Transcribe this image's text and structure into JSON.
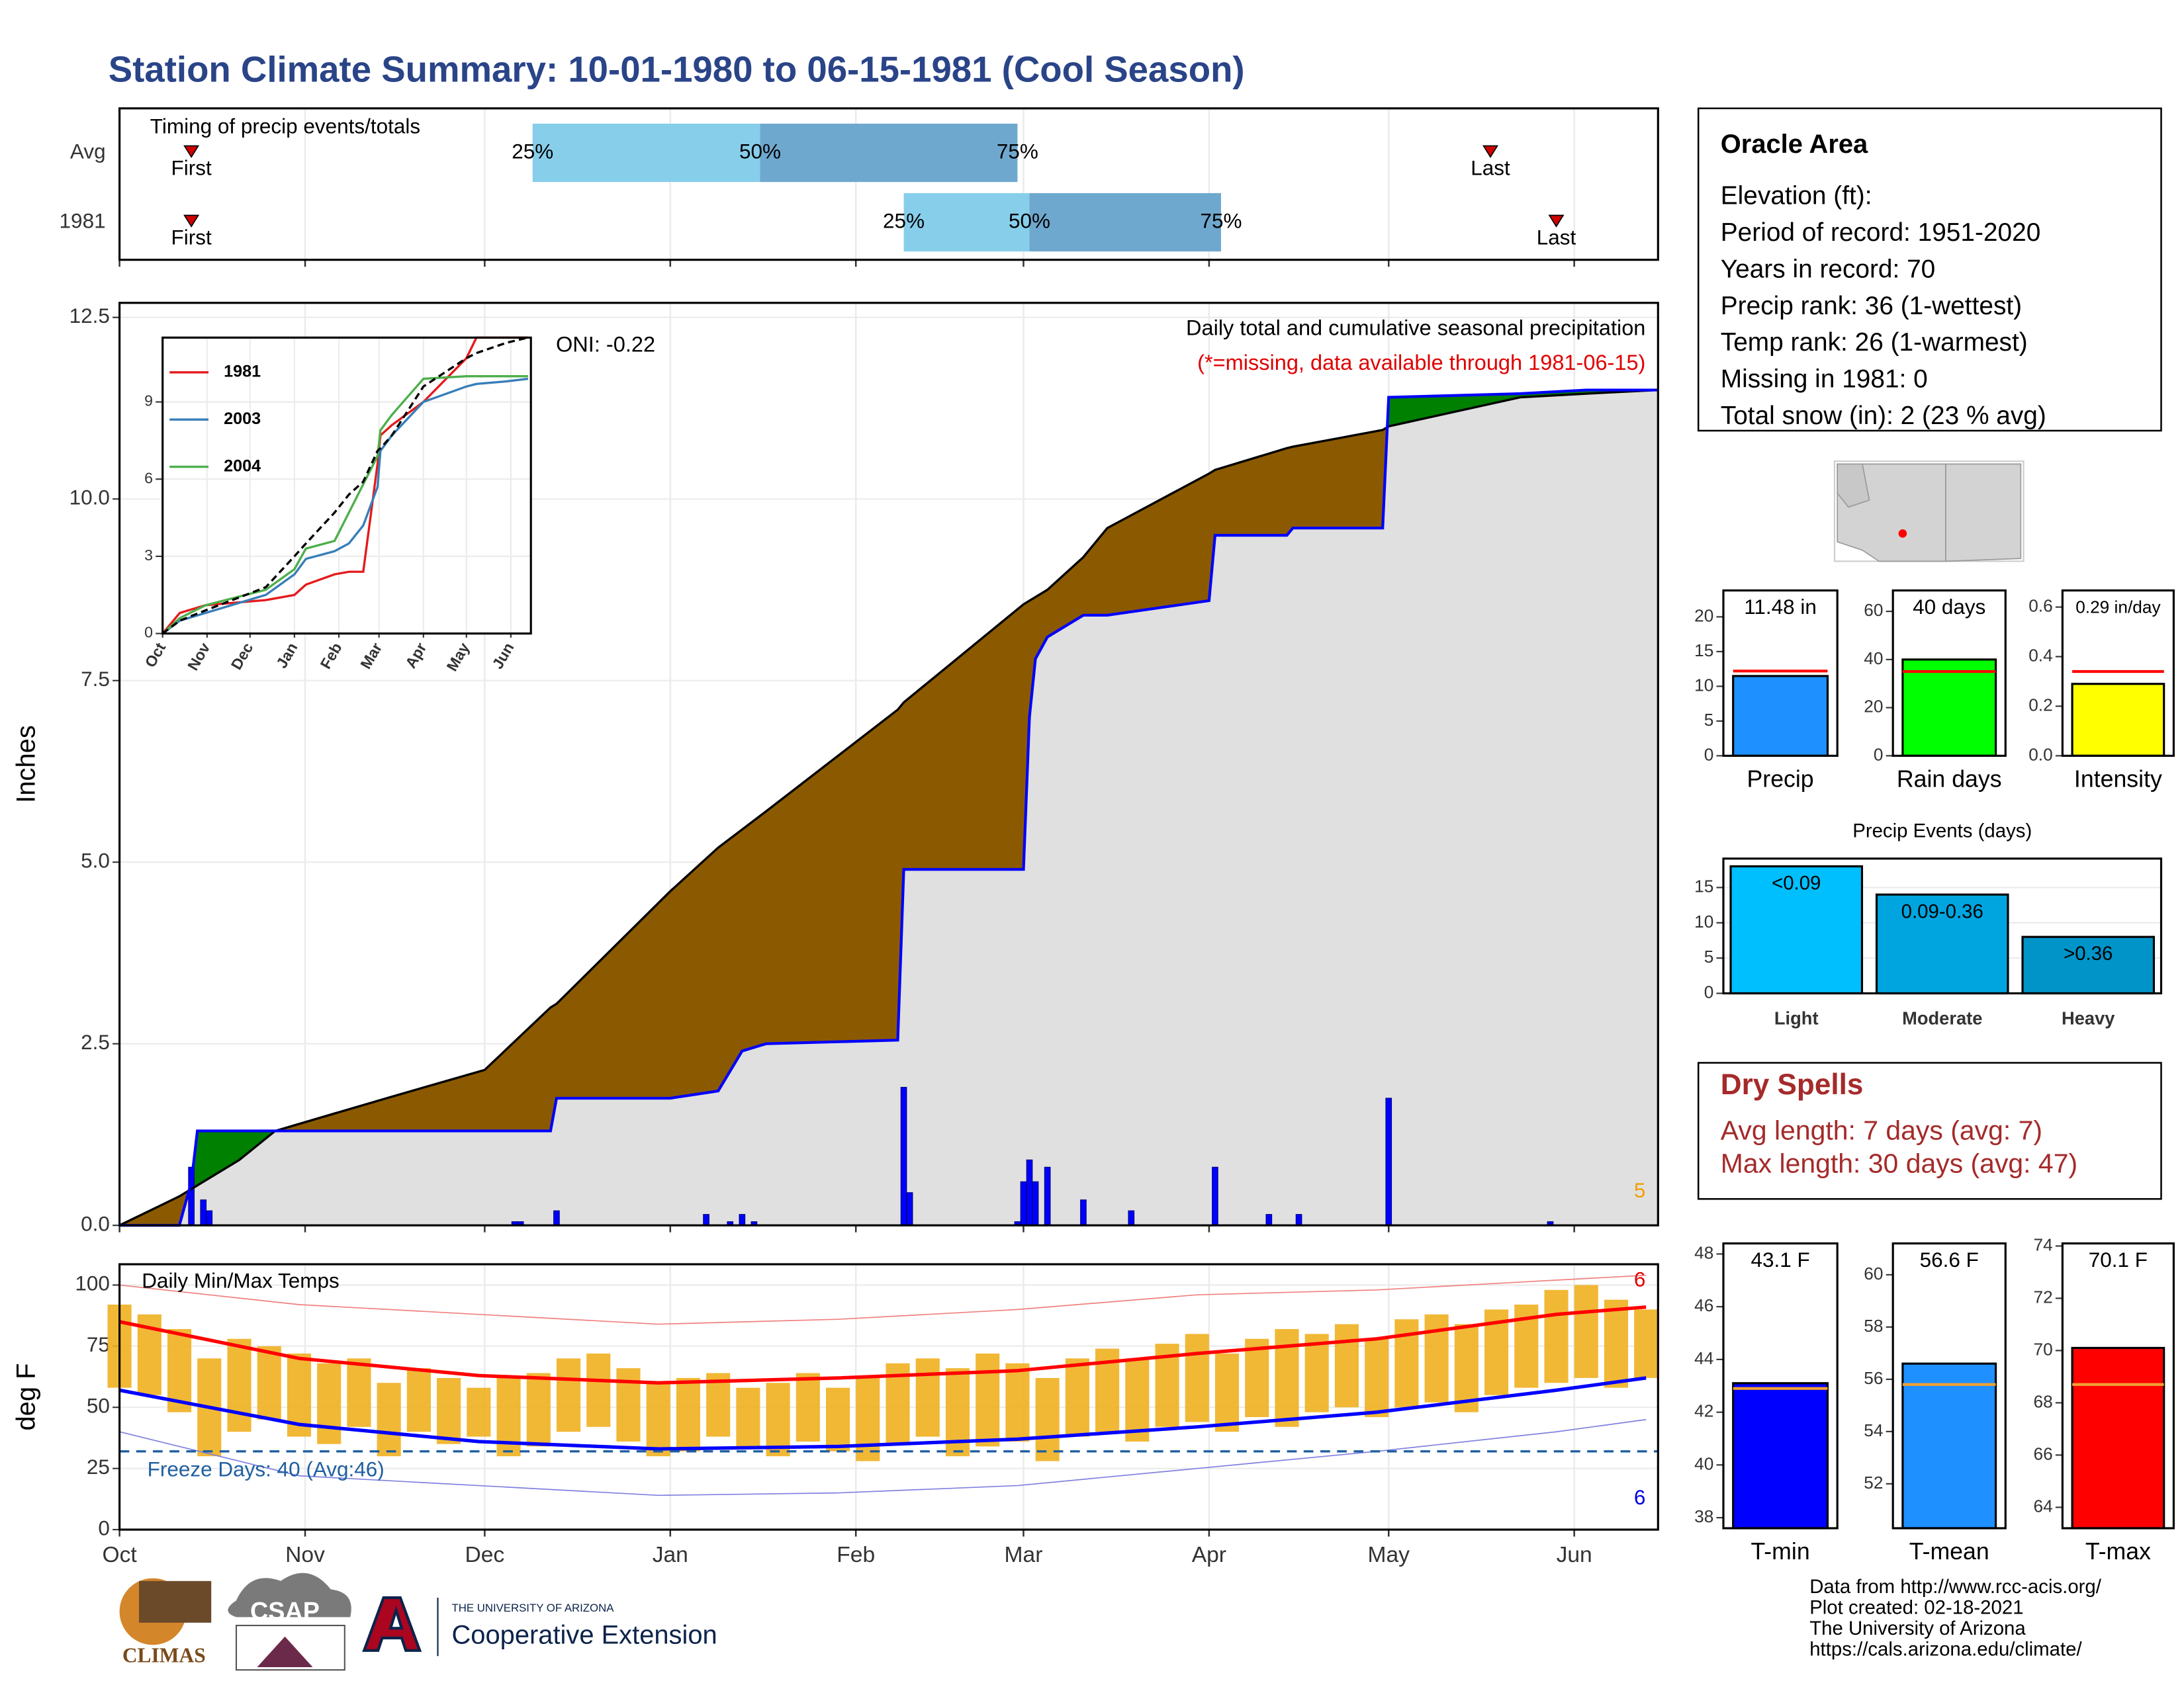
{
  "title": "Station Climate Summary: 10-01-1980 to 06-15-1981 (Cool Season)",
  "station": {
    "name": "Oracle Area",
    "lines": [
      "Elevation (ft):",
      "Period of record: 1951-2020",
      "Years in record: 70",
      "Precip rank: 36 (1-wettest)",
      "Temp rank: 26 (1-warmest)",
      "Missing in 1981: 0",
      "Total snow (in): 2 (23 % avg)"
    ]
  },
  "dry_spells": {
    "title": "Dry Spells",
    "lines": [
      "Avg length: 7 days (avg: 7)",
      "Max length: 30 days (avg: 47)"
    ]
  },
  "credits": [
    "Data from http://www.rcc-acis.org/",
    "Plot created: 02-18-2021",
    "The University of Arizona",
    "https://cals.arizona.edu/climate/"
  ],
  "logos": [
    "CLIMAS",
    "CSAP",
    "THE UNIVERSITY OF ARIZONA",
    "Cooperative Extension"
  ],
  "chart_data": [
    {
      "type": "timing",
      "title": "Timing of precip events/totals",
      "xlim": [
        0,
        257
      ],
      "xticks": [
        0,
        31,
        61,
        92,
        123,
        151,
        182,
        212,
        243
      ],
      "colors": [
        "#87ceeb",
        "#6fa8cf"
      ],
      "marker_color": "#d00000",
      "quartile_labels": [
        "25%",
        "50%",
        "75%"
      ],
      "first_label": "First",
      "last_label": "Last",
      "categories": [
        "Avg",
        "1981"
      ],
      "first": [
        12,
        12
      ],
      "quartiles": [
        [
          69,
          107,
          150
        ],
        [
          131,
          152,
          184
        ]
      ],
      "last": [
        229,
        240
      ]
    },
    {
      "type": "area",
      "title": "Daily total and cumulative seasonal precipitation",
      "subtitle": "(*=missing, data available through 1981-06-15)",
      "oni_label": "ONI: -0.22",
      "corner_count": 5,
      "ylabel": "Inches",
      "xlim": [
        0,
        257
      ],
      "xticks": [
        0,
        31,
        61,
        92,
        123,
        151,
        182,
        212,
        243
      ],
      "ylim": [
        0,
        12.7
      ],
      "yticks": [
        {
          "value": 0,
          "label": "0.0"
        },
        2.5,
        {
          "value": 5,
          "label": "5.0"
        },
        7.5,
        {
          "value": 10,
          "label": "10.0"
        },
        12.5
      ],
      "grid": true,
      "fill_colors": {
        "below": "#8b5a00",
        "above": "#008000",
        "base": "#e0e0e0"
      },
      "x": [
        0,
        5,
        10,
        12,
        13,
        20,
        26,
        45,
        61,
        72,
        73,
        92,
        100,
        104,
        108,
        130,
        131,
        151,
        152,
        153,
        155,
        161,
        165,
        182,
        183,
        195,
        196,
        211,
        212,
        234,
        245,
        257
      ],
      "series": [
        {
          "color": "#000000",
          "values": [
            0,
            0.2,
            0.4,
            0.5,
            0.55,
            0.9,
            1.3,
            1.76,
            2.14,
            3.0,
            3.05,
            4.6,
            5.2,
            5.45,
            5.7,
            7.1,
            7.2,
            8.55,
            8.6,
            8.65,
            8.75,
            9.2,
            9.6,
            10.35,
            10.4,
            10.7,
            10.72,
            10.95,
            11.0,
            11.4,
            11.45,
            11.5
          ]
        },
        {
          "color": "#0000ff",
          "values": [
            0,
            0,
            0,
            0.6,
            1.3,
            1.3,
            1.3,
            1.3,
            1.3,
            1.3,
            1.75,
            1.75,
            1.85,
            2.4,
            2.5,
            2.55,
            4.9,
            4.9,
            7.0,
            7.8,
            8.1,
            8.4,
            8.4,
            8.6,
            9.5,
            9.5,
            9.6,
            9.6,
            11.4,
            11.45,
            11.5,
            11.5
          ]
        }
      ],
      "daily": {
        "color": "#0000ff",
        "x": [
          12,
          14,
          15,
          66,
          67,
          73,
          98,
          102,
          104,
          106,
          131,
          132,
          150,
          151,
          152,
          153,
          155,
          161,
          169,
          183,
          192,
          197,
          212,
          239
        ],
        "values": [
          0.8,
          0.35,
          0.2,
          0.05,
          0.05,
          0.2,
          0.15,
          0.05,
          0.15,
          0.05,
          1.9,
          0.45,
          0.05,
          0.6,
          0.9,
          0.6,
          0.8,
          0.35,
          0.2,
          0.8,
          0.15,
          0.15,
          1.75,
          0.05
        ]
      }
    },
    {
      "type": "line",
      "xlim": [
        0,
        257
      ],
      "ylim": [
        0,
        11.5
      ],
      "xticks": [
        {
          "value": 0,
          "label": "Oct"
        },
        {
          "value": 31,
          "label": "Nov"
        },
        {
          "value": 61,
          "label": "Dec"
        },
        {
          "value": 92,
          "label": "Jan"
        },
        {
          "value": 123,
          "label": "Feb"
        },
        {
          "value": 151,
          "label": "Mar"
        },
        {
          "value": 182,
          "label": "Apr"
        },
        {
          "value": 212,
          "label": "May"
        },
        {
          "value": 243,
          "label": "Jun"
        }
      ],
      "yticks": [
        0,
        3,
        6,
        9
      ],
      "grid": true,
      "x": [
        0,
        12,
        30,
        72,
        92,
        100,
        120,
        130,
        140,
        150,
        152,
        160,
        182,
        212,
        219,
        240,
        255
      ],
      "series": [
        {
          "name": "1981",
          "color": "#e41a1c",
          "values": [
            0,
            0.8,
            1.1,
            1.3,
            1.5,
            1.9,
            2.3,
            2.4,
            2.4,
            6.6,
            7.7,
            8.1,
            9.0,
            10.7,
            11.5,
            11.5,
            11.5
          ]
        },
        {
          "name": "2003",
          "color": "#377eb8",
          "values": [
            0,
            0.5,
            0.8,
            1.5,
            2.3,
            2.9,
            3.2,
            3.5,
            4.2,
            5.7,
            7.1,
            7.7,
            9.0,
            9.6,
            9.7,
            9.8,
            9.9
          ]
        },
        {
          "name": "2004",
          "color": "#4daf4a",
          "values": [
            0,
            0.6,
            1.1,
            1.7,
            2.5,
            3.3,
            3.6,
            4.7,
            5.8,
            6.9,
            7.9,
            8.5,
            9.9,
            10.0,
            10.0,
            10.0,
            10.0
          ]
        },
        {
          "color": "#000000",
          "dash": true,
          "values": [
            0,
            0.5,
            0.9,
            1.8,
            3.0,
            3.5,
            4.7,
            5.4,
            5.9,
            7.1,
            7.2,
            7.7,
            9.6,
            10.7,
            10.9,
            11.3,
            11.5
          ]
        }
      ]
    },
    {
      "type": "temps",
      "title": "Daily Min/Max Temps",
      "freeze_label": "Freeze Days: 40 (Avg:46)",
      "freeze": 32,
      "record_high_count": 6,
      "record_low_count": 6,
      "ylabel": "deg F",
      "xlim": [
        0,
        257
      ],
      "ylim": [
        0,
        108.5
      ],
      "yticks": [
        0,
        25,
        50,
        75,
        100
      ],
      "grid": true,
      "xticks": [
        {
          "value": 0,
          "label": "Oct"
        },
        {
          "value": 31,
          "label": "Nov"
        },
        {
          "value": 61,
          "label": "Dec"
        },
        {
          "value": 92,
          "label": "Jan"
        },
        {
          "value": 123,
          "label": "Feb"
        },
        {
          "value": 151,
          "label": "Mar"
        },
        {
          "value": 182,
          "label": "Apr"
        },
        {
          "value": 212,
          "label": "May"
        },
        {
          "value": 243,
          "label": "Jun"
        }
      ],
      "x": [
        0,
        30,
        60,
        90,
        120,
        150,
        180,
        210,
        240,
        255
      ],
      "series": [
        {
          "color": "#f08080",
          "width": 0.8,
          "values": [
            100,
            92,
            88,
            84,
            86,
            90,
            96,
            98,
            102,
            104
          ]
        },
        {
          "color": "#8080e0",
          "width": 0.8,
          "values": [
            40,
            22,
            18,
            14,
            15,
            18,
            25,
            32,
            40,
            45
          ]
        },
        {
          "color": "#ff0000",
          "width": 2.5,
          "values": [
            85,
            70,
            63,
            60,
            62,
            65,
            72,
            78,
            88,
            91
          ]
        },
        {
          "color": "#0000ff",
          "width": 2.5,
          "values": [
            57,
            43,
            36,
            33,
            34,
            37,
            42,
            48,
            57,
            62
          ]
        }
      ],
      "daily": {
        "color": "#f0b020",
        "x": [
          0,
          5,
          10,
          15,
          20,
          25,
          30,
          35,
          40,
          45,
          50,
          55,
          60,
          65,
          70,
          75,
          80,
          85,
          90,
          95,
          100,
          105,
          110,
          115,
          120,
          125,
          130,
          135,
          140,
          145,
          150,
          155,
          160,
          165,
          170,
          175,
          180,
          185,
          190,
          195,
          200,
          205,
          210,
          215,
          220,
          225,
          230,
          235,
          240,
          245,
          250,
          255
        ],
        "min": [
          58,
          55,
          48,
          30,
          40,
          45,
          38,
          35,
          42,
          30,
          40,
          35,
          38,
          30,
          34,
          40,
          42,
          36,
          30,
          32,
          38,
          34,
          30,
          36,
          32,
          28,
          35,
          38,
          30,
          34,
          36,
          28,
          38,
          40,
          36,
          42,
          44,
          40,
          46,
          42,
          48,
          50,
          46,
          50,
          52,
          48,
          55,
          58,
          60,
          62,
          58,
          62
        ],
        "max": [
          92,
          88,
          82,
          70,
          78,
          75,
          72,
          68,
          70,
          60,
          66,
          62,
          58,
          62,
          64,
          70,
          72,
          66,
          60,
          62,
          64,
          58,
          60,
          64,
          58,
          62,
          68,
          70,
          66,
          72,
          68,
          62,
          70,
          74,
          70,
          76,
          80,
          72,
          78,
          82,
          80,
          84,
          78,
          86,
          88,
          84,
          90,
          92,
          98,
          100,
          94,
          90
        ]
      }
    },
    {
      "type": "bar",
      "categories": [
        "Precip"
      ],
      "values": [
        11.48
      ],
      "value_labels": [
        "11.48 in"
      ],
      "average": 12.2,
      "color": "#1e90ff",
      "avg_color": "#ff0000",
      "ylim": [
        0,
        23.8
      ],
      "yticks": [
        0,
        5,
        10,
        15,
        20
      ]
    },
    {
      "type": "bar",
      "categories": [
        "Rain days"
      ],
      "values": [
        40
      ],
      "value_labels": [
        "40 days"
      ],
      "average": 35,
      "color": "#00ff00",
      "avg_color": "#ff0000",
      "ylim": [
        0,
        68.7
      ],
      "yticks": [
        0,
        20,
        40,
        60
      ]
    },
    {
      "type": "bar",
      "categories": [
        "Intensity"
      ],
      "values": [
        0.29
      ],
      "value_labels": [
        "0.29 in/day"
      ],
      "average": 0.34,
      "color": "#ffff00",
      "avg_color": "#ff0000",
      "ylim": [
        0,
        0.667
      ],
      "yticks": [
        {
          "value": 0,
          "label": "0.0"
        },
        0.2,
        0.4,
        0.6
      ]
    },
    {
      "type": "bar",
      "title": "Precip Events (days)",
      "categories": [
        "Light",
        "Moderate",
        "Heavy"
      ],
      "values": [
        18,
        14,
        8
      ],
      "bar_labels": [
        "<0.09",
        "0.09-0.36",
        ">0.36"
      ],
      "colors": [
        "#00bfff",
        "#00a5e0",
        "#0094c8"
      ],
      "ylim": [
        0,
        19.1
      ],
      "yticks": [
        0,
        5,
        10,
        15
      ],
      "grid": true
    },
    {
      "type": "bar",
      "categories": [
        "T-min"
      ],
      "values": [
        43.1
      ],
      "value_labels": [
        "43.1 F"
      ],
      "average": 42.9,
      "color": "#0000ff",
      "avg_color": "#f0a030",
      "ylim": [
        37.6,
        48.4
      ],
      "yticks": [
        38,
        40,
        42,
        44,
        46,
        48
      ]
    },
    {
      "type": "bar",
      "categories": [
        "T-mean"
      ],
      "values": [
        56.6
      ],
      "value_labels": [
        "56.6 F"
      ],
      "average": 55.8,
      "color": "#1e90ff",
      "avg_color": "#f0a030",
      "ylim": [
        50.3,
        61.2
      ],
      "yticks": [
        52,
        54,
        56,
        58,
        60
      ]
    },
    {
      "type": "bar",
      "categories": [
        "T-max"
      ],
      "values": [
        70.1
      ],
      "value_labels": [
        "70.1 F"
      ],
      "average": 68.7,
      "color": "#ff0000",
      "avg_color": "#f0a030",
      "ylim": [
        63.2,
        74.1
      ],
      "yticks": [
        64,
        66,
        68,
        70,
        72,
        74
      ]
    }
  ]
}
